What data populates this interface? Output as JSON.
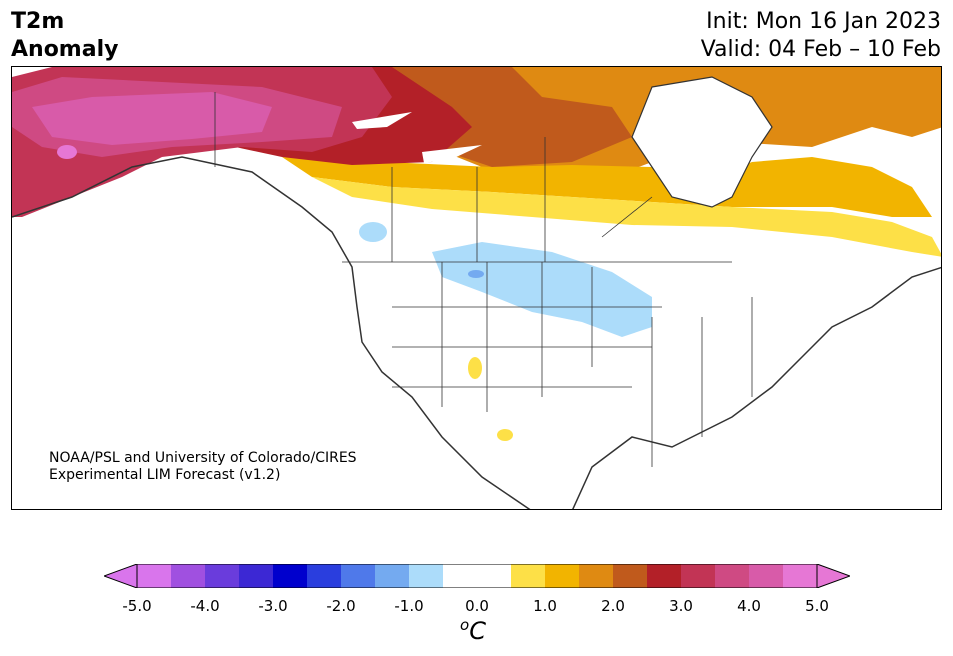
{
  "title": {
    "left_line1": "T2m",
    "left_line2": "Anomaly",
    "init": "Init: Mon 16 Jan 2023",
    "valid": "Valid: 04 Feb – 10 Feb"
  },
  "credit": {
    "line1": "NOAA/PSL and University of Colorado/CIRES",
    "line2": "Experimental LIM Forecast (v1.2)"
  },
  "colorbar": {
    "ticks": [
      "-5.0",
      "-4.0",
      "-3.0",
      "-2.0",
      "-1.0",
      "0.0",
      "1.0",
      "2.0",
      "3.0",
      "4.0",
      "5.0"
    ],
    "colors": [
      "#d975ec",
      "#a050e0",
      "#6a3cdc",
      "#3c28d4",
      "#0000cd",
      "#2a3ede",
      "#4f79ea",
      "#74aaf0",
      "#acdcfa",
      "#ffffff",
      "#ffffff",
      "#fde047",
      "#f2b400",
      "#df8a12",
      "#c05a1c",
      "#b32028",
      "#c23455",
      "#cf4a83",
      "#d85ba9",
      "#e677d5"
    ],
    "units": "C",
    "units_sup": "o"
  },
  "map_data": {
    "region": "North America",
    "variable": "2 m temperature anomaly",
    "features": [
      {
        "name": "Alaska",
        "anomaly_range": [
          4.0,
          5.0
        ]
      },
      {
        "name": "Yukon / Northwest Territories",
        "anomaly_range": [
          3.0,
          4.5
        ]
      },
      {
        "name": "Northern Canada / Arctic",
        "anomaly_range": [
          1.5,
          3.0
        ]
      },
      {
        "name": "Southern Canada Prairies",
        "anomaly_range": [
          0.5,
          1.5
        ]
      },
      {
        "name": "Northern Plains / Upper Midwest",
        "anomaly_range": [
          -1.0,
          -0.5
        ]
      },
      {
        "name": "Eastern Canada / Quebec",
        "anomaly_range": [
          1.0,
          2.0
        ]
      }
    ]
  }
}
